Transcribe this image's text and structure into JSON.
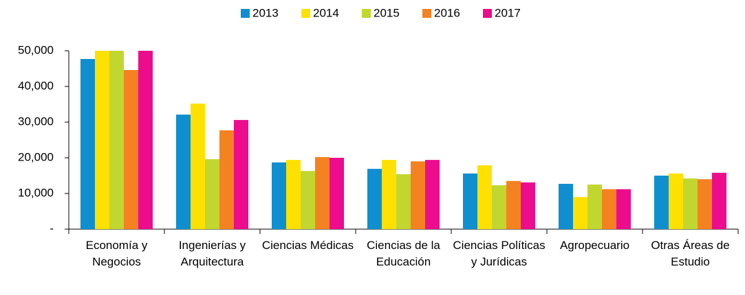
{
  "chart_data": {
    "type": "bar",
    "categories": [
      "Economía y Negocios",
      "Ingenierías y Arquitectura",
      "Ciencias Médicas",
      "Ciencias de la Educación",
      "Ciencias Políticas y Jurídicas",
      "Agropecuario",
      "Otras Áreas de Estudio"
    ],
    "series": [
      {
        "name": "2013",
        "color": "#0f8fd0",
        "values": [
          47700,
          32100,
          18700,
          16900,
          15600,
          12700,
          15000
        ]
      },
      {
        "name": "2014",
        "color": "#ffe100",
        "values": [
          50000,
          35200,
          19400,
          19400,
          17900,
          9000,
          15600
        ]
      },
      {
        "name": "2015",
        "color": "#c2d630",
        "values": [
          50000,
          19600,
          16300,
          15400,
          12300,
          12500,
          14200
        ]
      },
      {
        "name": "2016",
        "color": "#f58220",
        "values": [
          44600,
          27700,
          20200,
          19000,
          13500,
          11200,
          14000
        ]
      },
      {
        "name": "2017",
        "color": "#ec0c8c",
        "values": [
          50000,
          30600,
          20000,
          19400,
          13100,
          11200,
          15800
        ]
      }
    ],
    "ylim": [
      0,
      50000
    ],
    "yticks": [
      {
        "value": 0,
        "label": "-"
      },
      {
        "value": 10000,
        "label": "10,000"
      },
      {
        "value": 20000,
        "label": "20,000"
      },
      {
        "value": 30000,
        "label": "30,000"
      },
      {
        "value": 40000,
        "label": "40,000"
      },
      {
        "value": 50000,
        "label": "50,000"
      }
    ],
    "legend": "top"
  }
}
